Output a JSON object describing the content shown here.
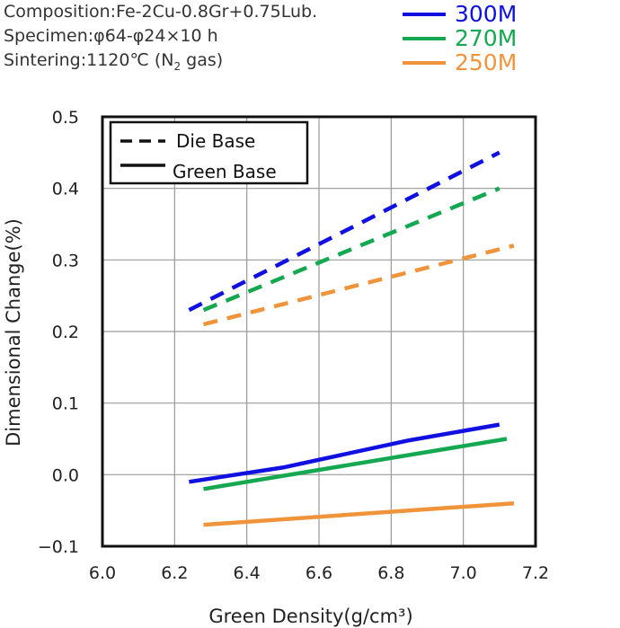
{
  "info": {
    "composition": "Composition:Fe-2Cu-0.8Gr+0.75Lub.",
    "specimen": "Specimen:φ64-φ24×10 h",
    "sintering_prefix": "Sintering:1120℃ (N",
    "sintering_sub": "2",
    "sintering_suffix": " gas)"
  },
  "colors": {
    "300M": "#1010e0",
    "270M": "#14a850",
    "250M": "#f0943c"
  },
  "chart_data": {
    "type": "line",
    "xlabel": "Green Density(g/cm³)",
    "ylabel": "Dimensional Change(%)",
    "xlim": [
      6.0,
      7.2
    ],
    "ylim": [
      -0.1,
      0.5
    ],
    "xticks": [
      "6.0",
      "6.2",
      "6.4",
      "6.6",
      "6.8",
      "7.0",
      "7.2"
    ],
    "yticks": [
      "0.5",
      "0.4",
      "0.3",
      "0.2",
      "0.1",
      "0.0",
      "−0.1"
    ],
    "grid": true,
    "legend_series": [
      "300M",
      "270M",
      "250M"
    ],
    "legend_styles": [
      "Die Base",
      "Green Base"
    ],
    "series": [
      {
        "name": "300M",
        "style": "Die Base",
        "color": "#1010e0",
        "x": [
          6.24,
          7.1
        ],
        "y": [
          0.23,
          0.45
        ]
      },
      {
        "name": "270M",
        "style": "Die Base",
        "color": "#14a850",
        "x": [
          6.28,
          7.1
        ],
        "y": [
          0.23,
          0.4
        ]
      },
      {
        "name": "250M",
        "style": "Die Base",
        "color": "#f0943c",
        "x": [
          6.28,
          7.14
        ],
        "y": [
          0.21,
          0.32
        ]
      },
      {
        "name": "300M",
        "style": "Green Base",
        "color": "#1010e0",
        "x": [
          6.24,
          6.5,
          6.85,
          7.1
        ],
        "y": [
          -0.01,
          0.01,
          0.048,
          0.07
        ]
      },
      {
        "name": "270M",
        "style": "Green Base",
        "color": "#14a850",
        "x": [
          6.28,
          7.12
        ],
        "y": [
          -0.02,
          0.05
        ]
      },
      {
        "name": "250M",
        "style": "Green Base",
        "color": "#f0943c",
        "x": [
          6.28,
          7.14
        ],
        "y": [
          -0.07,
          -0.04
        ]
      }
    ]
  }
}
